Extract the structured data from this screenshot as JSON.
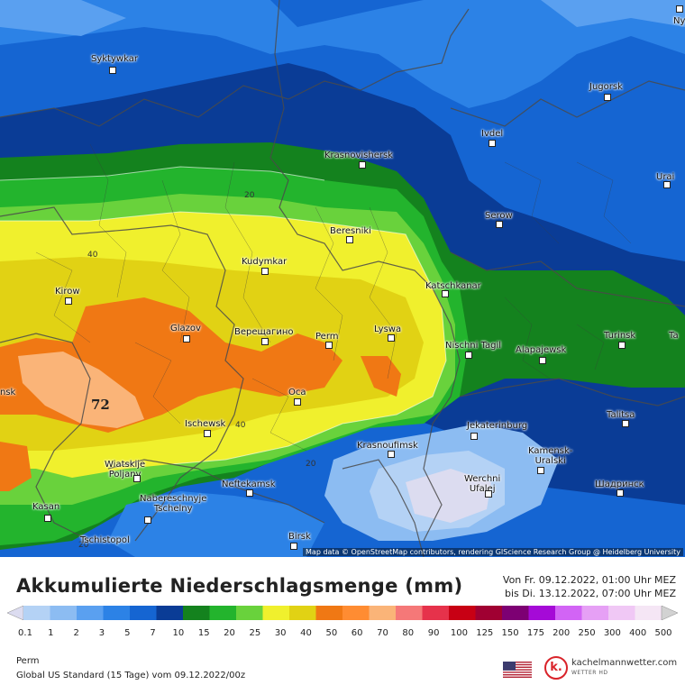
{
  "title": "Akkumulierte Niederschlagsmenge (mm)",
  "date_from": "Von Fr. 09.12.2022, 01:00 Uhr MEZ",
  "date_to": "bis Di. 13.12.2022, 07:00 Uhr MEZ",
  "location": "Perm",
  "model": "Global US Standard (15 Tage) vom 09.12.2022/00z",
  "attribution": "Map data © OpenStreetMap contributors, rendering GIScience Research Group @ Heidelberg University",
  "brand": {
    "name": "kachelmannwetter.com",
    "sub": "WETTER HD",
    "logo_letter": "k."
  },
  "flag_icon": "us-flag-icon",
  "max_value_label": "72",
  "contour_labels": {
    "c20a": "20",
    "c40a": "40",
    "c40b": "40",
    "c20b": "20",
    "c20c": "20"
  },
  "cities": {
    "syktywkar": "Syktywkar",
    "jugorsk": "Jugorsk",
    "ivdel": "Ivdel",
    "urai": "Urai",
    "krasnovishersk": "Krasnovishersk",
    "serow": "Serow",
    "beresniki": "Beresniki",
    "kudymkar": "Kudymkar",
    "katschkanar": "Katschkanar",
    "kirow": "Kirow",
    "glazov": "Glazov",
    "vereshchagino": "Верещагино",
    "perm": "Perm",
    "lyswa": "Lyswa",
    "nischni_tagil": "Nischni Tagil",
    "alapajewsk": "Alapajewsk",
    "turinsk": "Turinsk",
    "ta": "Ta",
    "ny": "Ny",
    "nsk": "nsk",
    "oca": "Oca",
    "ischewsk": "Ischewsk",
    "talitsa": "Talitsa",
    "jekaterinburg": "Jekaterinburg",
    "krasnoufimsk": "Krasnoufimsk",
    "kamensk_uralski": "Kamensk-\nUralski",
    "wiatskije_poljany": "Wiatskije\nPoljany",
    "neftekamsk": "Neftekamsk",
    "werchni_ufalej": "Werchni\nUfalej",
    "shadrinsk": "Шадринск",
    "nabereschnyje_tschelny": "Nabereschnyje\nTschelny",
    "kasan": "Kasan",
    "tschistopol": "Tschistopol",
    "birsk": "Birsk"
  },
  "legend": {
    "ticks": [
      "0.1",
      "1",
      "2",
      "3",
      "5",
      "7",
      "10",
      "15",
      "20",
      "25",
      "30",
      "40",
      "50",
      "60",
      "70",
      "80",
      "90",
      "100",
      "125",
      "150",
      "175",
      "200",
      "250",
      "300",
      "400",
      "500"
    ],
    "colors": [
      "#dcdcf0",
      "#b4d2f5",
      "#8cbcf2",
      "#5aa0f0",
      "#2c82e6",
      "#1565d2",
      "#0a3c96",
      "#14821e",
      "#23b42d",
      "#69d23c",
      "#f0f02d",
      "#e1d214",
      "#f07814",
      "#ff8c32",
      "#fab478",
      "#f57878",
      "#e6324b",
      "#c80014",
      "#a00032",
      "#7d0073",
      "#a50ad7",
      "#d264f5",
      "#e6a0f5",
      "#f0c8f5",
      "#f5e6f5",
      "#d2d2d2"
    ]
  }
}
